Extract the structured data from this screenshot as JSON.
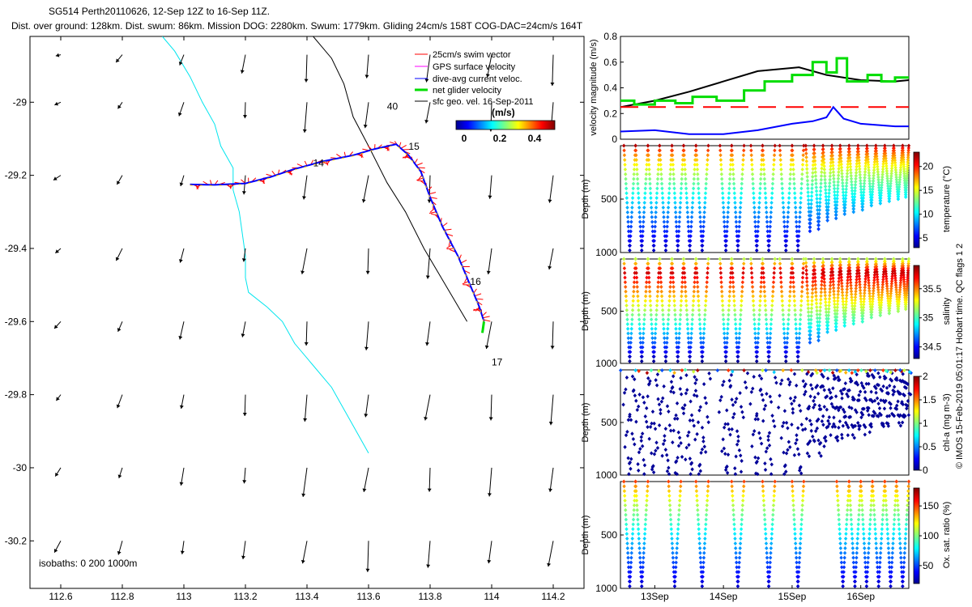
{
  "header": {
    "title": "SG514 Perth20110626, 12-Sep 12Z to 16-Sep 11Z.",
    "subtitle": "Dist. over ground: 128km. Dist. swum: 86km. Mission DOG: 2280km. Swum: 1779km. Gliding 24cm/s 158T COG-DAC=24cm/s 164T"
  },
  "side_note": "© IMOS 15-Feb-2019 05:01:17 Hobart time. QC flags 1  2",
  "colors": {
    "swim": "#ff0000",
    "gps": "#ff00ff",
    "dac": "#0000ff",
    "net": "#00dd00",
    "geo": "#000000",
    "isobath": "#00e5ee"
  },
  "chart_data": [
    {
      "type": "map",
      "xlim": [
        112.5,
        114.3
      ],
      "ylim": [
        -30.33,
        -28.82
      ],
      "x_ticks": [
        "112.6",
        "112.8",
        "113",
        "113.2",
        "113.4",
        "113.6",
        "113.8",
        "114",
        "114.2"
      ],
      "x_tick_values": [
        112.6,
        112.8,
        113,
        113.2,
        113.4,
        113.6,
        113.8,
        114,
        114.2
      ],
      "y_ticks": [
        "-29",
        "-29.2",
        "-29.4",
        "-29.6",
        "-29.8",
        "-30",
        "-30.2"
      ],
      "y_tick_values": [
        -29,
        -29.2,
        -29.4,
        -29.6,
        -29.8,
        -30,
        -30.2
      ],
      "legend": {
        "items": [
          "25cm/s swim vector",
          "GPS surface velocity",
          "dive-avg current veloc.",
          "net glider velocity",
          "sfc geo. vel. 16-Sep-2011"
        ],
        "colorbar_label": "(m/s)",
        "colorbar_ticks": [
          "0",
          "0.2",
          "0.4"
        ]
      },
      "isobaths_label": "isobaths: 0   200  1000m",
      "day_labels": [
        {
          "text": "14",
          "lon": 113.42,
          "lat": -29.175
        },
        {
          "text": "15",
          "lon": 113.73,
          "lat": -29.13
        },
        {
          "text": "16",
          "lon": 113.93,
          "lat": -29.5
        },
        {
          "text": "17",
          "lon": 114.0,
          "lat": -29.72
        },
        {
          "text": "40",
          "lon": 113.66,
          "lat": -29.02
        }
      ],
      "track": [
        [
          113.02,
          -29.225
        ],
        [
          113.1,
          -29.226
        ],
        [
          113.2,
          -29.222
        ],
        [
          113.28,
          -29.205
        ],
        [
          113.35,
          -29.185
        ],
        [
          113.45,
          -29.162
        ],
        [
          113.55,
          -29.145
        ],
        [
          113.62,
          -29.128
        ],
        [
          113.69,
          -29.115
        ],
        [
          113.73,
          -29.145
        ],
        [
          113.77,
          -29.19
        ],
        [
          113.8,
          -29.26
        ],
        [
          113.84,
          -29.34
        ],
        [
          113.89,
          -29.42
        ],
        [
          113.93,
          -29.5
        ],
        [
          113.96,
          -29.56
        ],
        [
          113.975,
          -29.6
        ]
      ],
      "isobath_cyan": [
        [
          112.93,
          -28.82
        ],
        [
          112.97,
          -28.86
        ],
        [
          113.02,
          -28.93
        ],
        [
          113.06,
          -29.0
        ],
        [
          113.1,
          -29.06
        ],
        [
          113.12,
          -29.12
        ],
        [
          113.16,
          -29.18
        ],
        [
          113.16,
          -29.24
        ],
        [
          113.18,
          -29.3
        ],
        [
          113.19,
          -29.36
        ],
        [
          113.2,
          -29.42
        ],
        [
          113.2,
          -29.48
        ],
        [
          113.21,
          -29.52
        ],
        [
          113.27,
          -29.56
        ],
        [
          113.32,
          -29.6
        ],
        [
          113.36,
          -29.66
        ],
        [
          113.42,
          -29.72
        ],
        [
          113.48,
          -29.78
        ],
        [
          113.52,
          -29.84
        ],
        [
          113.56,
          -29.9
        ],
        [
          113.6,
          -29.96
        ]
      ],
      "isobath_black": [
        [
          113.42,
          -28.82
        ],
        [
          113.48,
          -28.88
        ],
        [
          113.52,
          -28.95
        ],
        [
          113.55,
          -29.04
        ],
        [
          113.6,
          -29.12
        ],
        [
          113.66,
          -29.22
        ],
        [
          113.72,
          -29.3
        ],
        [
          113.78,
          -29.4
        ],
        [
          113.85,
          -29.5
        ],
        [
          113.92,
          -29.6
        ]
      ],
      "geo_grid_lons": [
        112.6,
        112.8,
        113,
        113.2,
        113.4,
        113.6,
        113.8,
        114,
        114.2
      ],
      "geo_grid_lats": [
        -28.87,
        -29.0,
        -29.2,
        -29.4,
        -29.6,
        -29.8,
        -30.0,
        -30.2
      ],
      "geo_vectors_u": [
        [
          0.0,
          0.0,
          0.0,
          0.0,
          0.0,
          0.0,
          0.0,
          0.0,
          0.0
        ],
        [
          0.0,
          0.0,
          0.0,
          0.0,
          0.0,
          0.0,
          0.0,
          0.0,
          0.0
        ],
        [
          0.0,
          0.0,
          0.0,
          0.0,
          0.0,
          0.0,
          0.0,
          0.0,
          0.0
        ],
        [
          0.0,
          0.0,
          0.0,
          0.0,
          0.0,
          0.0,
          0.0,
          0.0,
          0.0
        ],
        [
          0.0,
          0.0,
          0.0,
          0.0,
          0.0,
          0.0,
          0.0,
          0.0,
          0.0
        ],
        [
          0.0,
          0.0,
          0.0,
          0.0,
          0.0,
          0.0,
          0.0,
          0.0,
          0.0
        ],
        [
          0.0,
          0.0,
          0.0,
          0.0,
          0.0,
          0.0,
          0.0,
          0.0,
          0.0
        ],
        [
          0.0,
          0.0,
          0.0,
          0.0,
          0.0,
          0.0,
          0.0,
          0.0,
          0.0
        ]
      ]
    },
    {
      "type": "line",
      "ylabel": "velocity magnitude (m/s)",
      "ylim": [
        0,
        0.8
      ],
      "y_ticks": [
        "0",
        "0.2",
        "0.4",
        "0.6",
        "0.8"
      ],
      "xlim": [
        12.5,
        16.7
      ],
      "series": [
        {
          "color": "#000000",
          "x": [
            12.5,
            13.0,
            13.5,
            14.0,
            14.5,
            15.1,
            15.5,
            16.0,
            16.5,
            16.7
          ],
          "values": [
            0.25,
            0.3,
            0.37,
            0.45,
            0.53,
            0.56,
            0.5,
            0.46,
            0.45,
            0.46
          ]
        },
        {
          "color": "#00dd00",
          "x": [
            12.5,
            12.7,
            12.7,
            13.0,
            13.0,
            13.3,
            13.3,
            13.55,
            13.55,
            13.9,
            13.9,
            14.3,
            14.3,
            14.6,
            14.6,
            15.0,
            15.0,
            15.3,
            15.3,
            15.5,
            15.5,
            15.65,
            15.65,
            15.8,
            15.8,
            16.1,
            16.1,
            16.3,
            16.3,
            16.5,
            16.5,
            16.7
          ],
          "values": [
            0.3,
            0.3,
            0.27,
            0.27,
            0.3,
            0.3,
            0.28,
            0.28,
            0.33,
            0.33,
            0.3,
            0.3,
            0.38,
            0.38,
            0.45,
            0.45,
            0.5,
            0.5,
            0.6,
            0.6,
            0.52,
            0.52,
            0.63,
            0.63,
            0.45,
            0.45,
            0.5,
            0.5,
            0.45,
            0.45,
            0.48,
            0.48
          ]
        },
        {
          "color": "#0000ff",
          "x": [
            12.5,
            13.0,
            13.5,
            14.0,
            14.5,
            15.0,
            15.3,
            15.5,
            15.6,
            15.75,
            16.0,
            16.5,
            16.7
          ],
          "values": [
            0.06,
            0.07,
            0.04,
            0.04,
            0.07,
            0.12,
            0.14,
            0.17,
            0.25,
            0.16,
            0.12,
            0.1,
            0.1
          ]
        },
        {
          "color": "#ff0000",
          "dashed": true,
          "x": [
            12.5,
            16.7
          ],
          "values": [
            0.25,
            0.25
          ]
        }
      ]
    },
    {
      "type": "scatter",
      "ylabel": "Depth (m)",
      "colorbar_label": "temperature (°C)",
      "colorbar_ticks": [
        "5",
        "10",
        "15",
        "20"
      ],
      "crange": [
        3,
        23
      ],
      "ylim": [
        0,
        1000
      ],
      "y_ticks": [
        "500",
        "1000"
      ],
      "dives": [
        [
          12.55,
          12.72,
          980
        ],
        [
          12.72,
          12.9,
          980
        ],
        [
          12.9,
          13.07,
          980
        ],
        [
          13.07,
          13.25,
          980
        ],
        [
          13.25,
          13.42,
          980
        ],
        [
          13.42,
          13.6,
          980
        ],
        [
          13.6,
          13.78,
          980
        ],
        [
          13.95,
          14.12,
          980
        ],
        [
          14.12,
          14.3,
          980
        ],
        [
          14.4,
          14.57,
          980
        ],
        [
          14.57,
          14.75,
          980
        ],
        [
          14.82,
          15.0,
          980
        ],
        [
          15.0,
          15.17,
          980
        ],
        [
          15.2,
          15.32,
          800
        ],
        [
          15.32,
          15.45,
          780
        ],
        [
          15.45,
          15.58,
          700
        ],
        [
          15.58,
          15.7,
          680
        ],
        [
          15.7,
          15.83,
          640
        ],
        [
          15.83,
          15.96,
          620
        ],
        [
          15.96,
          16.09,
          600
        ],
        [
          16.09,
          16.22,
          560
        ],
        [
          16.22,
          16.35,
          540
        ],
        [
          16.35,
          16.48,
          520
        ],
        [
          16.48,
          16.61,
          500
        ],
        [
          16.61,
          16.7,
          480
        ]
      ],
      "profile": "temperature"
    },
    {
      "type": "scatter",
      "ylabel": "Depth (m)",
      "colorbar_label": "salinity",
      "colorbar_ticks": [
        "34.5",
        "35",
        "35.5"
      ],
      "crange": [
        34.3,
        35.9
      ],
      "ylim": [
        0,
        1000
      ],
      "y_ticks": [
        "500",
        "1000"
      ],
      "profile": "salinity"
    },
    {
      "type": "scatter",
      "ylabel": "Depth (m)",
      "colorbar_label": "chl-a (mg m-3)",
      "colorbar_ticks": [
        "0",
        "0.5",
        "1",
        "1.5",
        "2"
      ],
      "crange": [
        0,
        2
      ],
      "ylim": [
        0,
        1000
      ],
      "y_ticks": [
        "500",
        "1000"
      ],
      "profile": "chl"
    },
    {
      "type": "scatter",
      "ylabel": "Depth (m)",
      "colorbar_label": "Ox. sat. ratio (%)",
      "colorbar_ticks": [
        "50",
        "100",
        "150"
      ],
      "crange": [
        20,
        180
      ],
      "ylim": [
        0,
        1000
      ],
      "y_ticks": [
        "500",
        "1000"
      ],
      "x_ticks": [
        "13Sep",
        "14Sep",
        "15Sep",
        "16Sep"
      ],
      "x_tick_values": [
        13,
        14,
        15,
        16
      ],
      "oxy_dives": [
        [
          12.55,
          12.72
        ],
        [
          12.72,
          12.9
        ],
        [
          13.2,
          13.38
        ],
        [
          13.6,
          13.78
        ],
        [
          14.12,
          14.3
        ],
        [
          14.57,
          14.75
        ],
        [
          15.0,
          15.17
        ],
        [
          15.65,
          15.83
        ],
        [
          15.83,
          16.0
        ],
        [
          16.0,
          16.17
        ],
        [
          16.17,
          16.35
        ],
        [
          16.35,
          16.52
        ],
        [
          16.52,
          16.7
        ]
      ],
      "profile": "oxygen"
    }
  ]
}
